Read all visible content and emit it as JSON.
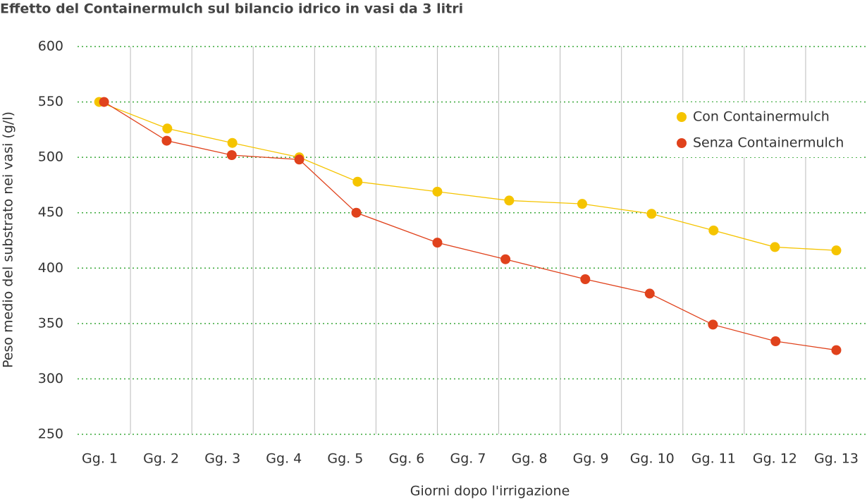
{
  "chart_data": {
    "type": "scatter",
    "title": "Effetto del Containermulch sul bilancio idrico in vasi da 3 litri",
    "x_label": "Giorni dopo l'irrigazione",
    "y_label": "Peso medio del substrato nei vasi (g/l)",
    "xlim": [
      0.5,
      13.5
    ],
    "xticks": [
      {
        "value": 1,
        "label": "Gg. 1"
      },
      {
        "value": 2,
        "label": "Gg. 2"
      },
      {
        "value": 3,
        "label": "Gg. 3"
      },
      {
        "value": 4,
        "label": "Gg. 4"
      },
      {
        "value": 5,
        "label": "Gg. 5"
      },
      {
        "value": 6,
        "label": "Gg. 6"
      },
      {
        "value": 7,
        "label": "Gg. 7"
      },
      {
        "value": 8,
        "label": "Gg. 8"
      },
      {
        "value": 9,
        "label": "Gg. 9"
      },
      {
        "value": 10,
        "label": "Gg. 10"
      },
      {
        "value": 11,
        "label": "Gg. 11"
      },
      {
        "value": 12,
        "label": "Gg. 12"
      },
      {
        "value": 13,
        "label": "Gg. 13"
      }
    ],
    "ylim": [
      250,
      600
    ],
    "yticks": [
      250,
      300,
      350,
      400,
      450,
      500,
      550,
      600
    ],
    "grid": true,
    "legend": "upper right",
    "series": [
      {
        "name": "Con Containermulch",
        "color": "#f5c400",
        "x": [
          0.99,
          2.1,
          3.16,
          4.25,
          5.2,
          6.5,
          7.67,
          8.86,
          9.99,
          11.0,
          12.0,
          13.0
        ],
        "values": [
          550,
          526,
          513,
          500,
          478,
          469,
          461,
          458,
          449,
          434,
          419,
          416
        ]
      },
      {
        "name": "Senza Containermulch",
        "color": "#e0421c",
        "x": [
          1.07,
          2.09,
          3.15,
          4.25,
          5.18,
          6.5,
          7.61,
          8.91,
          9.96,
          10.99,
          12.01,
          13.0
        ],
        "values": [
          550,
          515,
          502,
          498,
          450,
          423,
          408,
          390,
          377,
          349,
          334,
          326
        ]
      }
    ]
  }
}
